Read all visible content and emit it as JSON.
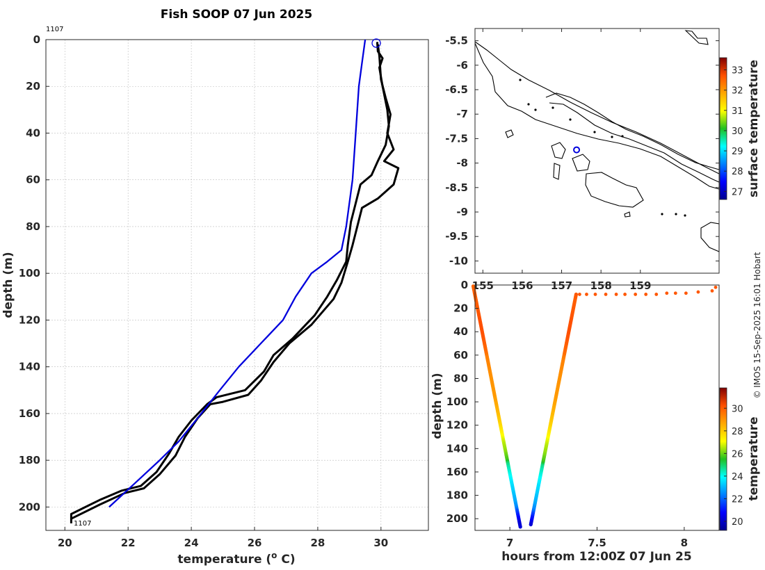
{
  "chart_data": [
    {
      "type": "line",
      "title": "Fish SOOP 07 Jun 2025",
      "xlabel": "temperature (",
      "xlabel_sup": "o",
      "xlabel_unit": " C)",
      "ylabel": "depth (m)",
      "xlim": [
        19.4,
        31.5
      ],
      "ylim": [
        210,
        0
      ],
      "xticks": [
        20,
        22,
        24,
        26,
        28,
        30
      ],
      "yticks": [
        0,
        20,
        40,
        60,
        80,
        100,
        120,
        140,
        160,
        180,
        200
      ],
      "grid": true,
      "annotations": [
        "1107",
        "1107"
      ],
      "series": [
        {
          "color": "#000000",
          "profile": "down",
          "points": [
            [
              29.88,
              1
            ],
            [
              29.9,
              5
            ],
            [
              30.05,
              8
            ],
            [
              29.95,
              12
            ],
            [
              30.05,
              20
            ],
            [
              30.2,
              30
            ],
            [
              30.25,
              37
            ],
            [
              30.15,
              45
            ],
            [
              29.9,
              52
            ],
            [
              29.7,
              58
            ],
            [
              29.35,
              62
            ],
            [
              29.2,
              70
            ],
            [
              29.05,
              78
            ],
            [
              28.95,
              88
            ],
            [
              28.9,
              95
            ],
            [
              28.6,
              103
            ],
            [
              28.3,
              110
            ],
            [
              27.9,
              118
            ],
            [
              27.2,
              128
            ],
            [
              26.6,
              135
            ],
            [
              26.3,
              142
            ],
            [
              25.7,
              150
            ],
            [
              24.8,
              153
            ],
            [
              24.5,
              156
            ],
            [
              24.0,
              163
            ],
            [
              23.6,
              170
            ],
            [
              23.3,
              177
            ],
            [
              22.9,
              185
            ],
            [
              22.4,
              191
            ],
            [
              21.8,
              193
            ],
            [
              21.1,
              197
            ],
            [
              20.2,
              203
            ],
            [
              20.2,
              207
            ]
          ]
        },
        {
          "color": "#000000",
          "profile": "up",
          "points": [
            [
              20.2,
              205
            ],
            [
              21.1,
              199
            ],
            [
              21.9,
              194
            ],
            [
              22.5,
              192
            ],
            [
              23.0,
              186
            ],
            [
              23.5,
              178
            ],
            [
              23.8,
              170
            ],
            [
              24.2,
              162
            ],
            [
              24.6,
              156
            ],
            [
              25.0,
              155
            ],
            [
              25.8,
              152
            ],
            [
              26.2,
              146
            ],
            [
              26.6,
              138
            ],
            [
              27.1,
              130
            ],
            [
              27.8,
              122
            ],
            [
              28.5,
              111
            ],
            [
              28.75,
              104
            ],
            [
              28.95,
              95
            ],
            [
              29.1,
              88
            ],
            [
              29.25,
              80
            ],
            [
              29.4,
              72
            ],
            [
              29.9,
              68
            ],
            [
              30.4,
              62
            ],
            [
              30.55,
              55
            ],
            [
              30.1,
              52
            ],
            [
              30.4,
              47
            ],
            [
              30.2,
              40
            ],
            [
              30.3,
              32
            ],
            [
              30.15,
              25
            ],
            [
              30.0,
              17
            ],
            [
              29.95,
              7
            ],
            [
              29.9,
              2
            ]
          ]
        },
        {
          "color": "#0000dd",
          "profile": "climatology",
          "points": [
            [
              29.5,
              0
            ],
            [
              29.4,
              10
            ],
            [
              29.3,
              20
            ],
            [
              29.2,
              40
            ],
            [
              29.1,
              60
            ],
            [
              28.9,
              80
            ],
            [
              28.75,
              90
            ],
            [
              28.3,
              95
            ],
            [
              27.8,
              100
            ],
            [
              27.3,
              110
            ],
            [
              26.9,
              120
            ],
            [
              26.2,
              130
            ],
            [
              25.5,
              140
            ],
            [
              24.9,
              150
            ],
            [
              24.2,
              162
            ],
            [
              23.6,
              172
            ],
            [
              23.0,
              180
            ],
            [
              22.2,
              190
            ],
            [
              21.4,
              200
            ]
          ]
        }
      ],
      "marker": {
        "x": 29.85,
        "y": 1.5,
        "shape": "circle",
        "color": "#0000dd"
      }
    },
    {
      "type": "map",
      "xlim": [
        154.8,
        161.0
      ],
      "ylim": [
        -10.25,
        -5.25
      ],
      "xticks": [
        155,
        156,
        157,
        158,
        159
      ],
      "yticks": [
        -5.5,
        -6,
        -6.5,
        -7,
        -7.5,
        -8,
        -8.5,
        -9,
        -9.5,
        -10
      ],
      "position": {
        "lon": 157.38,
        "lat": -7.73,
        "color": "#0000dd"
      },
      "colorbar": {
        "label": "surface temperature",
        "min": 26.6,
        "max": 33.6,
        "ticks": [
          27,
          28,
          29,
          30,
          31,
          32,
          33
        ]
      }
    },
    {
      "type": "scatter",
      "xlabel": "hours from 12:00Z 07 Jun 25",
      "ylabel": "depth (m)",
      "xlim": [
        6.8,
        8.2
      ],
      "ylim": [
        210,
        0
      ],
      "xticks": [
        7,
        7.5,
        8
      ],
      "yticks": [
        0,
        20,
        40,
        60,
        80,
        100,
        120,
        140,
        160,
        180,
        200
      ],
      "colorbar": {
        "label": "temperature",
        "min": 19.2,
        "max": 31.8,
        "ticks": [
          20,
          22,
          24,
          26,
          28,
          30
        ]
      },
      "descent": {
        "start": [
          6.79,
          1
        ],
        "end": [
          7.06,
          207
        ]
      },
      "ascent": {
        "start": [
          7.12,
          205
        ],
        "end": [
          7.38,
          8
        ]
      },
      "surface_points": [
        [
          7.38,
          8
        ],
        [
          7.4,
          8
        ],
        [
          7.44,
          8
        ],
        [
          7.49,
          8
        ],
        [
          7.55,
          8
        ],
        [
          7.61,
          8
        ],
        [
          7.66,
          8
        ],
        [
          7.72,
          8
        ],
        [
          7.78,
          8
        ],
        [
          7.84,
          8
        ],
        [
          7.9,
          7
        ],
        [
          7.95,
          7
        ],
        [
          8.01,
          7
        ],
        [
          8.08,
          6
        ],
        [
          8.16,
          5
        ],
        [
          8.18,
          2
        ]
      ],
      "surface_temp": 30.1
    }
  ],
  "credit": "© IMOS 15-Sep-2025 16:01 Hobart"
}
